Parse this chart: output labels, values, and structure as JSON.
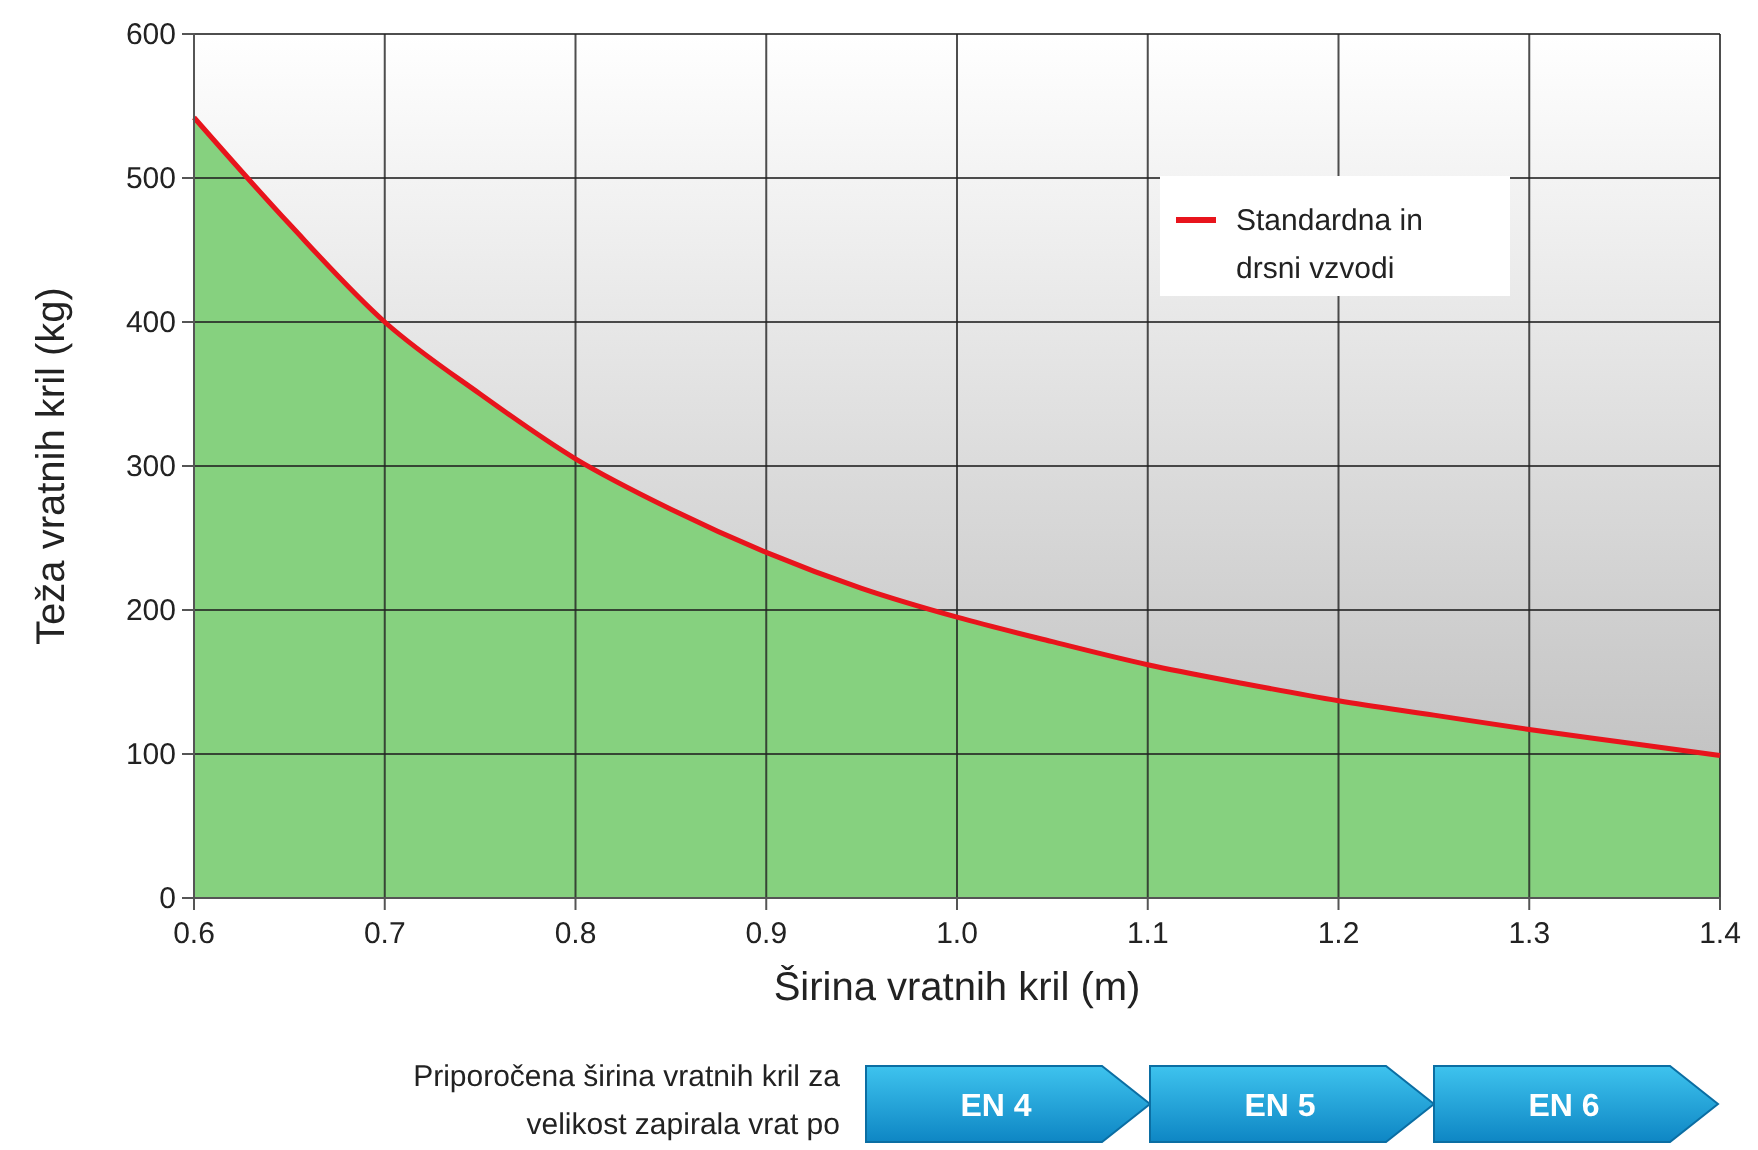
{
  "chart_data": {
    "type": "area",
    "xlabel": "Širina vratnih kril (m)",
    "ylabel": "Teža vratnih kril (kg)",
    "x": [
      0.6,
      0.65,
      0.7,
      0.75,
      0.8,
      0.85,
      0.9,
      0.95,
      1.0,
      1.05,
      1.1,
      1.15,
      1.2,
      1.25,
      1.3,
      1.35,
      1.4
    ],
    "series": [
      {
        "color": "#86d17f",
        "values": [
          542,
          468,
          400,
          350,
          305,
          270,
          240,
          215,
          195,
          178,
          162,
          149,
          137,
          127,
          117,
          108,
          99
        ]
      },
      {
        "type": "line",
        "name": "Standardna in drsni vzvodi",
        "color": "#e8141c",
        "values": [
          542,
          468,
          400,
          350,
          305,
          270,
          240,
          215,
          195,
          178,
          162,
          149,
          137,
          127,
          117,
          108,
          99
        ]
      }
    ],
    "xlim": [
      0.6,
      1.4
    ],
    "xticks": [
      {
        "value": 0.6,
        "label": "0.6"
      },
      {
        "value": 0.7,
        "label": "0.7"
      },
      {
        "value": 0.8,
        "label": "0.8"
      },
      {
        "value": 0.9,
        "label": "0.9"
      },
      {
        "value": 1.0,
        "label": "1.0"
      },
      {
        "value": 1.1,
        "label": "1.1"
      },
      {
        "value": 1.2,
        "label": "1.2"
      },
      {
        "value": 1.3,
        "label": "1.3"
      },
      {
        "value": 1.4,
        "label": "1.4"
      }
    ],
    "ylim": [
      0,
      600
    ],
    "yticks": [
      0,
      100,
      200,
      300,
      400,
      500,
      600
    ],
    "grid": true,
    "legend": "top right",
    "annotations": [
      "Priporočena širina vratnih kril za velikost zapirala vrat po",
      "EN 4",
      "EN 5",
      "EN 6"
    ]
  }
}
